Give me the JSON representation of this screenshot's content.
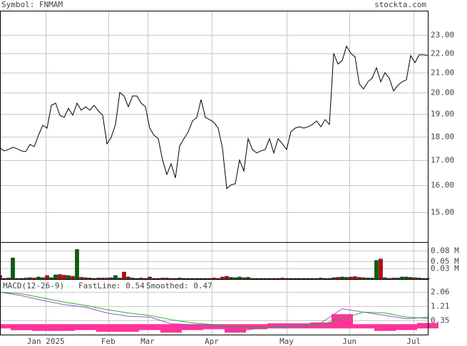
{
  "header": {
    "symbol": "Symbol: FNMAM",
    "site": "stockta.com"
  },
  "chart_data": [
    {
      "type": "line",
      "color": "#000000",
      "log_y": true,
      "grid": true,
      "xlim": [
        0,
        100
      ],
      "xticks": [
        {
          "value": 10.7,
          "label": "Jan 2025"
        },
        {
          "value": 25.3,
          "label": "Feb"
        },
        {
          "value": 34.5,
          "label": "Mar"
        },
        {
          "value": 49.5,
          "label": "Apr"
        },
        {
          "value": 67,
          "label": "May"
        },
        {
          "value": 81.7,
          "label": "Jun"
        },
        {
          "value": 96.7,
          "label": "Jul"
        }
      ],
      "ylim": [
        13.96,
        24.38
      ],
      "yticks": [
        {
          "value": 23,
          "label": "23.00"
        },
        {
          "value": 22,
          "label": "22.00"
        },
        {
          "value": 21,
          "label": "21.00"
        },
        {
          "value": 20,
          "label": "20.00"
        },
        {
          "value": 19,
          "label": "19.00"
        },
        {
          "value": 18,
          "label": "18.00"
        },
        {
          "value": 17,
          "label": "17.00"
        },
        {
          "value": 16,
          "label": "16.00"
        },
        {
          "value": 15,
          "label": "15.00"
        }
      ],
      "values": [
        17.51,
        17.39,
        17.45,
        17.54,
        17.48,
        17.39,
        17.36,
        17.66,
        17.57,
        18.06,
        18.5,
        18.37,
        19.41,
        19.51,
        18.95,
        18.85,
        19.27,
        18.95,
        19.51,
        19.18,
        19.34,
        19.18,
        19.41,
        19.15,
        18.95,
        17.69,
        17.97,
        18.53,
        20.02,
        19.85,
        19.34,
        19.85,
        19.85,
        19.51,
        19.34,
        18.37,
        18.06,
        17.91,
        17.01,
        16.43,
        16.86,
        16.29,
        17.6,
        17.91,
        18.21,
        18.69,
        18.85,
        19.68,
        18.85,
        18.75,
        18.63,
        18.37,
        17.51,
        15.88,
        16.02,
        16.07,
        17.01,
        16.57,
        17.91,
        17.45,
        17.3,
        17.39,
        17.45,
        17.91,
        17.3,
        17.91,
        17.69,
        17.45,
        18.21,
        18.37,
        18.43,
        18.37,
        18.43,
        18.53,
        18.69,
        18.43,
        18.75,
        18.53,
        22.0,
        21.44,
        21.62,
        22.38,
        22.0,
        21.81,
        20.43,
        20.19,
        20.54,
        20.72,
        21.25,
        20.54,
        21.0,
        20.72,
        20.09,
        20.36,
        20.54,
        20.64,
        21.88,
        21.51,
        21.92,
        21.92,
        21.88
      ]
    },
    {
      "type": "bar",
      "up_color": "#006600",
      "down_color": "#cc0000",
      "grid": true,
      "ylim": [
        0,
        0.103
      ],
      "yticks": [
        {
          "value": 0.08,
          "label": "0.08 M"
        },
        {
          "value": 0.05,
          "label": "0.05 M"
        },
        {
          "value": 0.03,
          "label": "0.03 M"
        }
      ],
      "values": [
        0.01,
        0.002,
        0.003,
        0.06,
        0.002,
        0.002,
        0.003,
        0.004,
        0.003,
        0.006,
        0.004,
        0.01,
        0.004,
        0.012,
        0.013,
        0.011,
        0.01,
        0.008,
        0.084,
        0.005,
        0.004,
        0.003,
        0.002,
        0.003,
        0.003,
        0.003,
        0.004,
        0.01,
        0.003,
        0.02,
        0.006,
        0.003,
        0.002,
        0.003,
        0.002,
        0.006,
        0.002,
        0.002,
        0.003,
        0.003,
        0.002,
        0.002,
        0.003,
        0.002,
        0.002,
        0.002,
        0.002,
        0.002,
        0.002,
        0.002,
        0.003,
        0.002,
        0.006,
        0.008,
        0.005,
        0.004,
        0.006,
        0.004,
        0.005,
        0.002,
        0.002,
        0.002,
        0.002,
        0.002,
        0.002,
        0.002,
        0.003,
        0.002,
        0.002,
        0.002,
        0.002,
        0.002,
        0.002,
        0.002,
        0.002,
        0.003,
        0.002,
        0.002,
        0.004,
        0.005,
        0.006,
        0.005,
        0.006,
        0.007,
        0.005,
        0.004,
        0.003,
        0.003,
        0.053,
        0.057,
        0.004,
        0.002,
        0.003,
        0.003,
        0.006,
        0.006,
        0.005,
        0.004,
        0.003,
        0.002,
        0.002
      ]
    },
    {
      "type": "macd",
      "title": "MACD(12-26-9)",
      "grid": true,
      "ylim": [
        -0.5,
        2.79
      ],
      "yticks": [
        2.06,
        1.21,
        0.35
      ],
      "x": [
        0,
        5,
        10,
        15,
        20,
        25,
        30,
        35,
        40,
        45,
        50,
        55,
        60,
        65,
        70,
        75,
        80,
        85,
        90,
        95,
        100
      ],
      "histogram": {
        "color": "#ff3399",
        "values": [
          0,
          -0.11,
          -0.15,
          -0.15,
          -0.1,
          -0.2,
          -0.2,
          -0.1,
          -0.25,
          -0.1,
          -0.05,
          -0.25,
          -0.05,
          0.05,
          0.05,
          0.1,
          0.6,
          0,
          -0.15,
          -0.1,
          0.07
        ]
      },
      "series": [
        {
          "name": "FastLine: 0.54",
          "color": "#9955cc",
          "values": [
            2.05,
            1.84,
            1.55,
            1.3,
            1.15,
            0.8,
            0.6,
            0.55,
            0.15,
            0.1,
            0.05,
            -0.3,
            -0.15,
            0.0,
            0.05,
            0.2,
            1.05,
            0.85,
            0.65,
            0.45,
            0.54
          ]
        },
        {
          "name": "Smoothed: 0.47",
          "color": "#33aa33",
          "values": [
            2.05,
            1.95,
            1.7,
            1.45,
            1.25,
            1.0,
            0.8,
            0.65,
            0.4,
            0.2,
            0.1,
            -0.05,
            -0.1,
            -0.05,
            0.0,
            0.1,
            0.45,
            0.85,
            0.8,
            0.55,
            0.47
          ]
        }
      ]
    }
  ]
}
